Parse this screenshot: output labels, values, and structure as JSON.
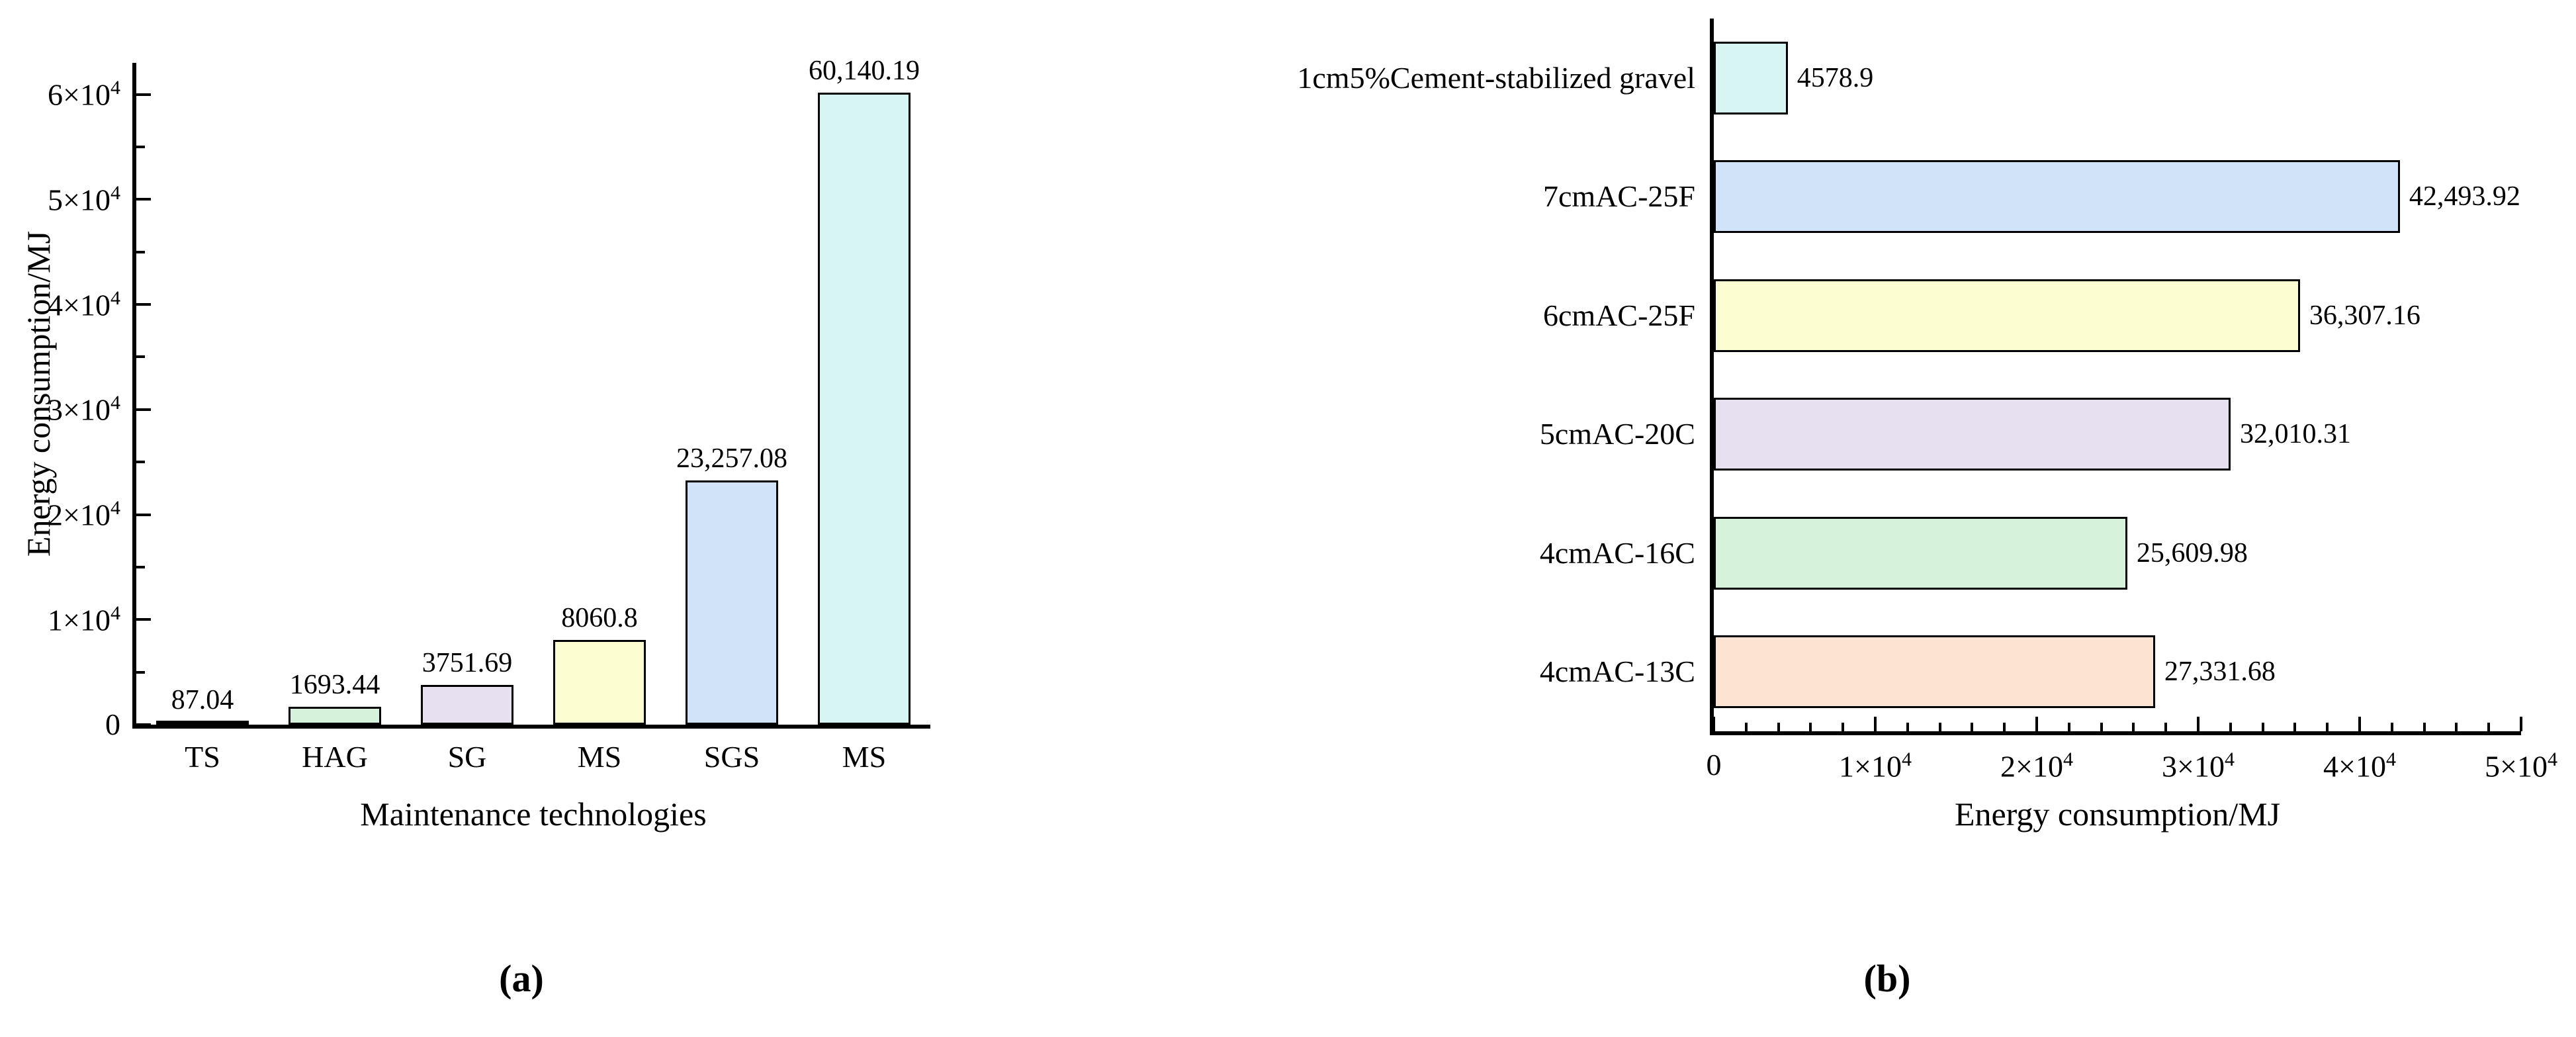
{
  "captions": {
    "a": "(a)",
    "b": "(b)"
  },
  "colors": {
    "cyan": "#d6f5f3",
    "blue": "#d0e3f8",
    "yellow": "#fdfdd2",
    "lavender": "#e7e0f0",
    "green": "#d7f2da",
    "peach": "#fde3d1",
    "black": "#000000",
    "bar_border": "#000000",
    "background": "#ffffff"
  },
  "chart_data": [
    {
      "type": "bar",
      "orientation": "vertical",
      "title": "",
      "xlabel": "Maintenance technologies",
      "ylabel": "Energy consumption/MJ",
      "categories": [
        "TS",
        "HAG",
        "SG",
        "MS",
        "SGS",
        "MS"
      ],
      "values": [
        87.04,
        1693.44,
        3751.69,
        8060.8,
        23257.08,
        60140.19
      ],
      "value_labels": [
        "87.04",
        "1693.44",
        "3751.69",
        "8060.8",
        "23,257.08",
        "60,140.19"
      ],
      "bar_colors": [
        "#000000",
        "#d7f2da",
        "#e7e0f0",
        "#fdfdd2",
        "#d0e3f8",
        "#d6f5f3"
      ],
      "ylim": [
        0,
        63000
      ],
      "major_step": 10000,
      "minor_step": 5000,
      "grid": false,
      "legend": "none",
      "yticks": [
        {
          "v": 0,
          "m": "0",
          "e": ""
        },
        {
          "v": 10000,
          "m": "1×10",
          "e": "4"
        },
        {
          "v": 20000,
          "m": "2×10",
          "e": "4"
        },
        {
          "v": 30000,
          "m": "3×10",
          "e": "4"
        },
        {
          "v": 40000,
          "m": "4×10",
          "e": "4"
        },
        {
          "v": 50000,
          "m": "5×10",
          "e": "4"
        },
        {
          "v": 60000,
          "m": "6×10",
          "e": "4"
        }
      ]
    },
    {
      "type": "bar",
      "orientation": "horizontal",
      "title": "",
      "xlabel": "Energy consumption/MJ",
      "ylabel": "",
      "categories": [
        "1cm5%Cement-stabilized gravel",
        "7cmAC-25F",
        "6cmAC-25F",
        "5cmAC-20C",
        "4cmAC-16C",
        "4cmAC-13C"
      ],
      "values": [
        4578.9,
        42493.92,
        36307.16,
        32010.31,
        25609.98,
        27331.68
      ],
      "value_labels": [
        "4578.9",
        "42,493.92",
        "36,307.16",
        "32,010.31",
        "25,609.98",
        "27,331.68"
      ],
      "bar_colors": [
        "#d6f5f3",
        "#d0e3f8",
        "#fdfdd2",
        "#e7e0f0",
        "#d7f2da",
        "#fde3d1"
      ],
      "xlim": [
        0,
        50000
      ],
      "major_step": 10000,
      "minor_step": 2000,
      "grid": false,
      "legend": "none",
      "xticks": [
        {
          "v": 0,
          "m": "0",
          "e": ""
        },
        {
          "v": 10000,
          "m": "1×10",
          "e": "4"
        },
        {
          "v": 20000,
          "m": "2×10",
          "e": "4"
        },
        {
          "v": 30000,
          "m": "3×10",
          "e": "4"
        },
        {
          "v": 40000,
          "m": "4×10",
          "e": "4"
        },
        {
          "v": 50000,
          "m": "5×10",
          "e": "4"
        }
      ]
    }
  ]
}
